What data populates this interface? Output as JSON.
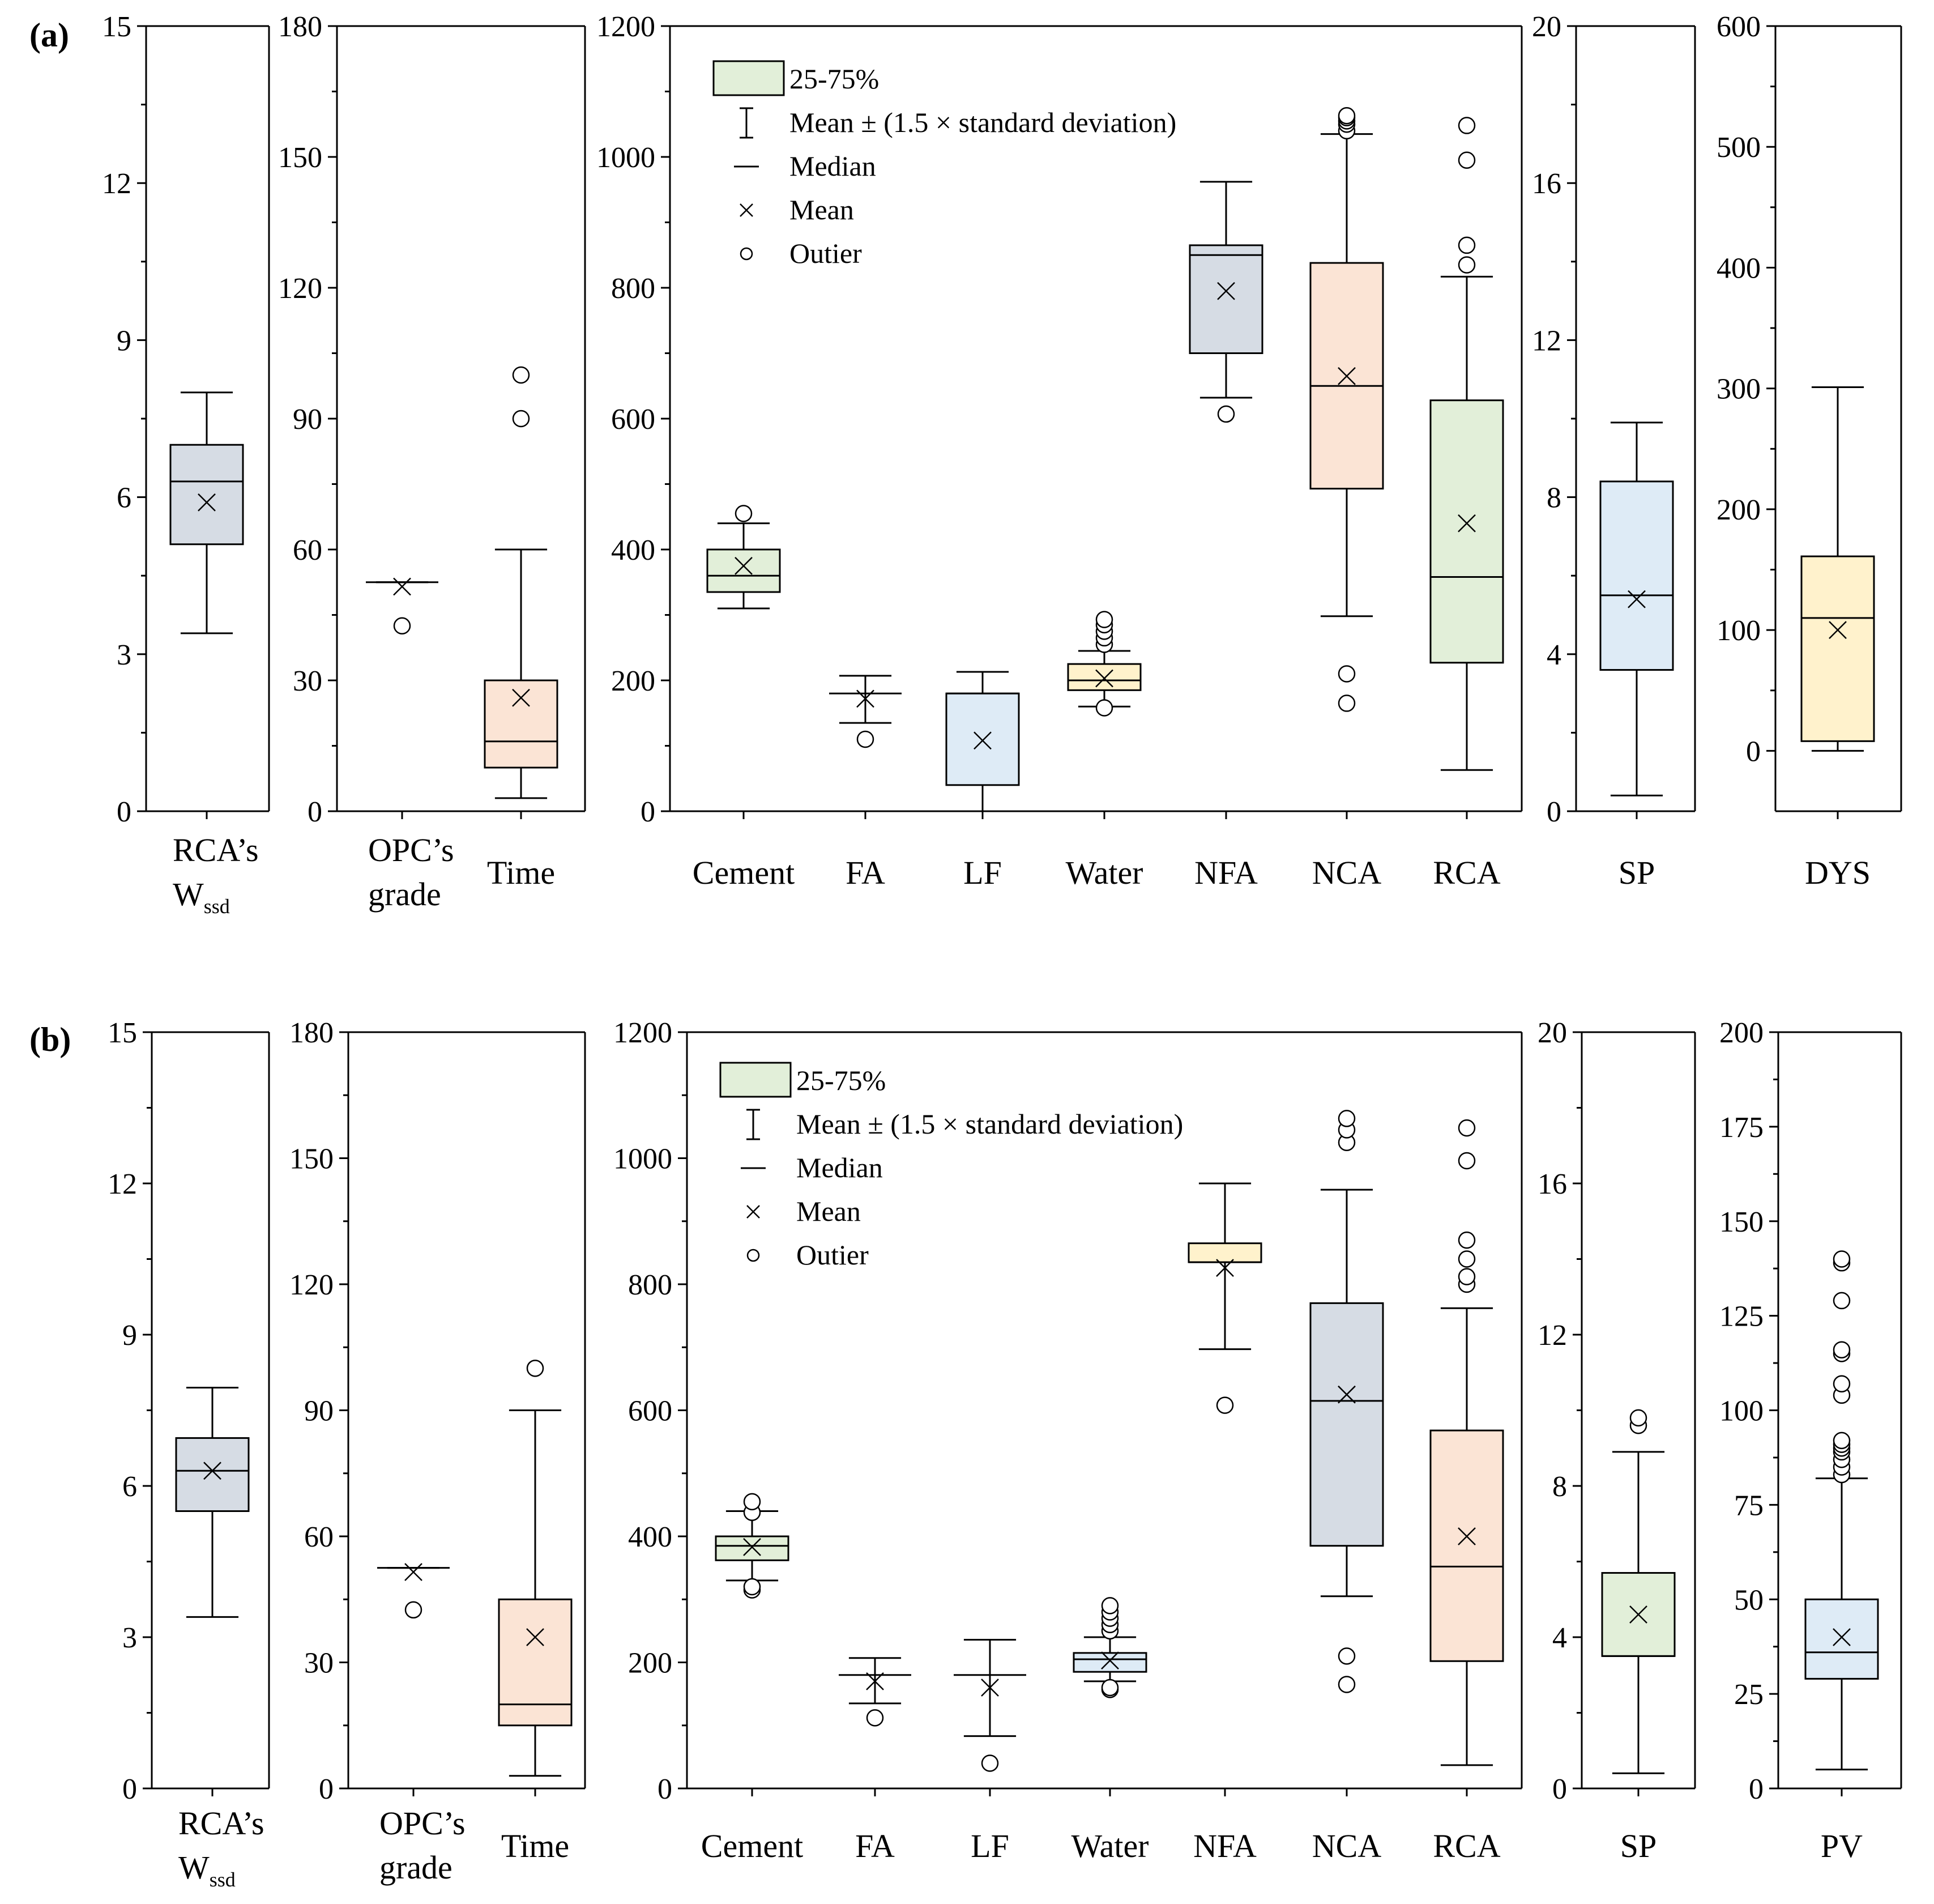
{
  "colors": {
    "green": "#e2efd9",
    "slate": "#d6dce4",
    "peach": "#fbe4d5",
    "blue": "#deebf6",
    "yellow": "#fff2cc",
    "axis": "#000000"
  },
  "legend_data": {
    "box": "25-75%",
    "whisker": "Mean ± (1.5 × standard deviation)",
    "median": "Median",
    "mean": "Mean",
    "outlier": "Outier"
  },
  "chart_data": [
    {
      "type": "box",
      "panel": "(a)",
      "groups": [
        {
          "name": "wssd",
          "ylim": [
            0,
            15
          ],
          "yticks": [
            0,
            3,
            6,
            9,
            12,
            15
          ],
          "categories": [
            {
              "label": [
                "RCA’s",
                "W"
              ],
              "sub": "ssd",
              "q1": 5.1,
              "median": 6.3,
              "q3": 7.0,
              "mean": 5.9,
              "low": 3.4,
              "high": 8.0,
              "color": "slate",
              "outliers": []
            }
          ]
        },
        {
          "name": "opc-time",
          "ylim": [
            0,
            180
          ],
          "yticks": [
            0,
            30,
            60,
            90,
            120,
            150,
            180
          ],
          "categories": [
            {
              "label": [
                "OPC’s",
                "grade"
              ],
              "q1": 52.5,
              "median": 52.5,
              "q3": 52.5,
              "mean": 51.5,
              "low": 52.5,
              "high": 52.5,
              "color": "green",
              "outliers": [
                42.5
              ],
              "nobox": true
            },
            {
              "label": [
                "Time"
              ],
              "q1": 10,
              "median": 16,
              "q3": 30,
              "mean": 26,
              "low": 3,
              "high": 60,
              "color": "peach",
              "outliers": [
                90,
                100
              ]
            }
          ]
        },
        {
          "name": "materials",
          "ylim": [
            0,
            1200
          ],
          "yticks": [
            0,
            200,
            400,
            600,
            800,
            1000,
            1200
          ],
          "categories": [
            {
              "label": [
                "Cement"
              ],
              "q1": 335,
              "median": 360,
              "q3": 400,
              "mean": 375,
              "low": 310,
              "high": 440,
              "color": "green",
              "outliers": [
                455
              ]
            },
            {
              "label": [
                "FA"
              ],
              "q1": 180,
              "median": 180,
              "q3": 180,
              "mean": 172,
              "low": 135,
              "high": 207,
              "color": "blue",
              "outliers": [
                110
              ],
              "nobox": true
            },
            {
              "label": [
                "LF"
              ],
              "q1": 40,
              "median": 180,
              "q3": 180,
              "mean": 108,
              "low": 0,
              "high": 213,
              "color": "blue",
              "outliers": []
            },
            {
              "label": [
                "Water"
              ],
              "q1": 185,
              "median": 200,
              "q3": 225,
              "mean": 203,
              "low": 160,
              "high": 245,
              "color": "yellow",
              "outliers": [
                158,
                255,
                265,
                275,
                285,
                293
              ]
            },
            {
              "label": [
                "NFA"
              ],
              "q1": 700,
              "median": 850,
              "q3": 865,
              "mean": 795,
              "low": 632,
              "high": 962,
              "color": "slate",
              "outliers": [
                607
              ]
            },
            {
              "label": [
                "NCA"
              ],
              "q1": 493,
              "median": 650,
              "q3": 838,
              "mean": 665,
              "low": 298,
              "high": 1035,
              "color": "peach",
              "outliers": [
                165,
                210,
                1040,
                1050,
                1055,
                1060,
                1063
              ]
            },
            {
              "label": [
                "RCA"
              ],
              "q1": 227,
              "median": 358,
              "q3": 628,
              "mean": 440,
              "low": 63,
              "high": 817,
              "color": "green",
              "outliers": [
                835,
                865,
                995,
                1048
              ]
            }
          ]
        },
        {
          "name": "sp",
          "ylim": [
            0,
            20
          ],
          "yticks": [
            0,
            4,
            8,
            12,
            16,
            20
          ],
          "categories": [
            {
              "label": [
                "SP"
              ],
              "q1": 3.6,
              "median": 5.5,
              "q3": 8.4,
              "mean": 5.4,
              "low": 0.4,
              "high": 9.9,
              "color": "blue",
              "outliers": []
            }
          ]
        },
        {
          "name": "dys",
          "ylim": [
            -50,
            600
          ],
          "yticks": [
            0,
            100,
            200,
            300,
            400,
            500,
            600
          ],
          "categories": [
            {
              "label": [
                "DYS"
              ],
              "q1": 8,
              "median": 110,
              "q3": 161,
              "mean": 100,
              "low": 0,
              "high": 301,
              "color": "yellow",
              "outliers": []
            }
          ]
        }
      ]
    },
    {
      "type": "box",
      "panel": "(b)",
      "groups": [
        {
          "name": "wssd",
          "ylim": [
            0,
            15
          ],
          "yticks": [
            0,
            3,
            6,
            9,
            12,
            15
          ],
          "categories": [
            {
              "label": [
                "RCA’s",
                "W"
              ],
              "sub": "ssd",
              "q1": 5.5,
              "median": 6.3,
              "q3": 6.95,
              "mean": 6.3,
              "low": 3.4,
              "high": 7.95,
              "color": "slate",
              "outliers": []
            }
          ]
        },
        {
          "name": "opc-time",
          "ylim": [
            0,
            180
          ],
          "yticks": [
            0,
            30,
            60,
            90,
            120,
            150,
            180
          ],
          "categories": [
            {
              "label": [
                "OPC’s",
                "grade"
              ],
              "q1": 52.5,
              "median": 52.5,
              "q3": 52.5,
              "mean": 51.5,
              "low": 52.5,
              "high": 52.5,
              "color": "green",
              "outliers": [
                42.5
              ],
              "nobox": true
            },
            {
              "label": [
                "Time"
              ],
              "q1": 15,
              "median": 20,
              "q3": 45,
              "mean": 36,
              "low": 3,
              "high": 90,
              "color": "peach",
              "outliers": [
                100
              ]
            }
          ]
        },
        {
          "name": "materials",
          "ylim": [
            0,
            1200
          ],
          "yticks": [
            0,
            200,
            400,
            600,
            800,
            1000,
            1200
          ],
          "categories": [
            {
              "label": [
                "Cement"
              ],
              "q1": 362,
              "median": 385,
              "q3": 400,
              "mean": 383,
              "low": 330,
              "high": 440,
              "color": "green",
              "outliers": [
                315,
                320,
                438,
                455
              ]
            },
            {
              "label": [
                "FA"
              ],
              "q1": 180,
              "median": 180,
              "q3": 180,
              "mean": 170,
              "low": 135,
              "high": 207,
              "color": "blue",
              "outliers": [
                112
              ],
              "nobox": true
            },
            {
              "label": [
                "LF"
              ],
              "q1": 180,
              "median": 180,
              "q3": 180,
              "mean": 160,
              "low": 83,
              "high": 236,
              "color": "blue",
              "outliers": [
                40
              ],
              "nobox": true
            },
            {
              "label": [
                "Water"
              ],
              "q1": 185,
              "median": 205,
              "q3": 215,
              "mean": 203,
              "low": 170,
              "high": 240,
              "color": "blue",
              "outliers": [
                157,
                160,
                250,
                260,
                270,
                280,
                290
              ]
            },
            {
              "label": [
                "NFA"
              ],
              "q1": 835,
              "median": 835,
              "q3": 865,
              "mean": 826,
              "low": 697,
              "high": 960,
              "color": "yellow",
              "outliers": [
                608
              ]
            },
            {
              "label": [
                "NCA"
              ],
              "q1": 385,
              "median": 615,
              "q3": 770,
              "mean": 625,
              "low": 305,
              "high": 950,
              "color": "slate",
              "outliers": [
                165,
                210,
                1025,
                1045,
                1063
              ]
            },
            {
              "label": [
                "RCA"
              ],
              "q1": 202,
              "median": 352,
              "q3": 568,
              "mean": 400,
              "low": 37,
              "high": 762,
              "color": "peach",
              "outliers": [
                800,
                812,
                840,
                870,
                996,
                1048
              ]
            }
          ]
        },
        {
          "name": "sp",
          "ylim": [
            0,
            20
          ],
          "yticks": [
            0,
            4,
            8,
            12,
            16,
            20
          ],
          "categories": [
            {
              "label": [
                "SP"
              ],
              "q1": 3.5,
              "median": 3.5,
              "q3": 5.7,
              "mean": 4.6,
              "low": 0.4,
              "high": 8.9,
              "color": "green",
              "outliers": [
                9.6,
                9.8
              ]
            }
          ]
        },
        {
          "name": "pv",
          "ylim": [
            0,
            200
          ],
          "yticks": [
            0,
            25,
            50,
            75,
            100,
            125,
            150,
            175,
            200
          ],
          "categories": [
            {
              "label": [
                "PV"
              ],
              "q1": 29,
              "median": 36,
              "q3": 50,
              "mean": 40,
              "low": 5,
              "high": 82,
              "color": "blue",
              "outliers": [
                83,
                85,
                87,
                89,
                90,
                91,
                92,
                104,
                107,
                115,
                116,
                129,
                139,
                140
              ]
            }
          ]
        }
      ]
    }
  ]
}
